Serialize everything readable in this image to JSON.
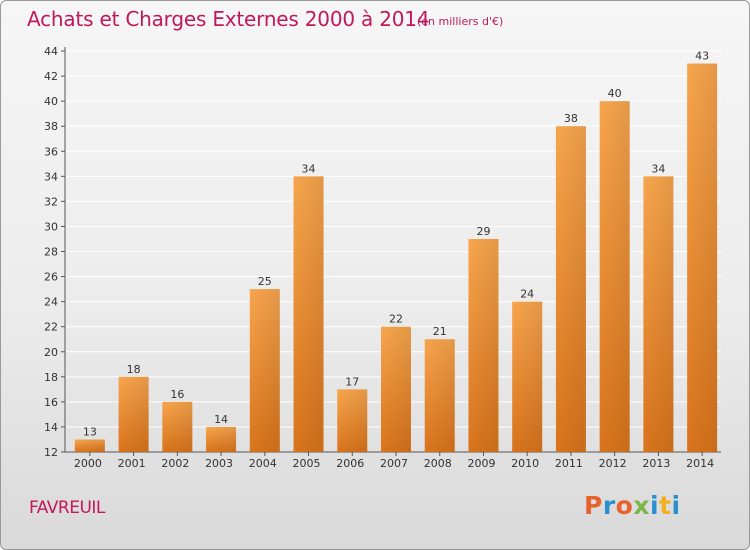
{
  "header": {
    "title": "Achats et Charges Externes 2000 à 2014",
    "subtitle": "(en milliers d'€)"
  },
  "footer": {
    "commune": "FAVREUIL",
    "brand": "Proxiti"
  },
  "colors": {
    "title": "#c0185c",
    "bar_light": "#f7a54d",
    "bar_dark": "#d9741c",
    "grid": "#ffffff",
    "brand_letters": [
      "#e8622c",
      "#2a8fd0",
      "#e8622c",
      "#7ab648",
      "#2a8fd0",
      "#f2b01e",
      "#2a8fd0"
    ]
  },
  "chart_data": {
    "type": "bar",
    "title": "Achats et Charges Externes 2000 à 2014",
    "subtitle": "(en milliers d'€)",
    "categories": [
      "2000",
      "2001",
      "2002",
      "2003",
      "2004",
      "2005",
      "2006",
      "2007",
      "2008",
      "2009",
      "2010",
      "2011",
      "2012",
      "2013",
      "2014"
    ],
    "values": [
      13,
      18,
      16,
      14,
      25,
      34,
      17,
      22,
      21,
      29,
      24,
      38,
      40,
      34,
      43
    ],
    "ylim": [
      12,
      44
    ],
    "yticks": [
      12,
      14,
      16,
      18,
      20,
      22,
      24,
      26,
      28,
      30,
      32,
      34,
      36,
      38,
      40,
      42,
      44
    ],
    "grid": true,
    "xlabel": "",
    "ylabel": ""
  }
}
